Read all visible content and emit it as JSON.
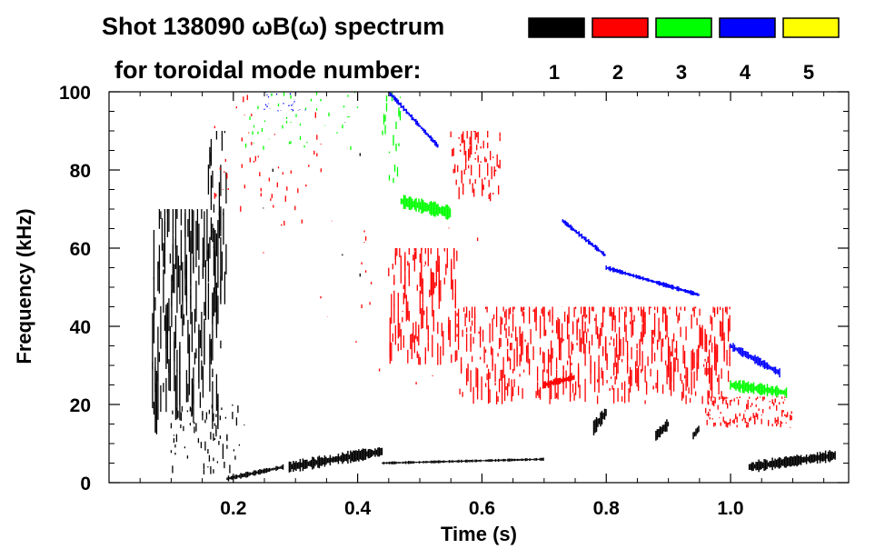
{
  "chart_data": {
    "type": "scatter",
    "title_line1": "Shot 138090 ωB(ω) spectrum",
    "title_line2": "for toroidal mode number:",
    "xlabel": "Time (s)",
    "ylabel": "Frequency (kHz)",
    "xlim": [
      0.0,
      1.19
    ],
    "ylim": [
      0,
      100
    ],
    "x_ticks": [
      0.2,
      0.4,
      0.6,
      0.8,
      1.0
    ],
    "x_tick_labels": [
      "0.2",
      "0.4",
      "0.6",
      "0.8",
      "1.0"
    ],
    "y_ticks": [
      0,
      20,
      40,
      60,
      80,
      100
    ],
    "y_tick_labels": [
      "0",
      "20",
      "40",
      "60",
      "80",
      "100"
    ],
    "legend": [
      {
        "label": "1",
        "color": "#000000"
      },
      {
        "label": "2",
        "color": "#ff0000"
      },
      {
        "label": "3",
        "color": "#00ff00"
      },
      {
        "label": "4",
        "color": "#0000ff"
      },
      {
        "label": "5",
        "color": "#ffff00"
      }
    ],
    "series": [
      {
        "name": "n=1",
        "color": "#000000",
        "regions": [
          {
            "x": [
              0.07,
              0.18
            ],
            "y": [
              12,
              70
            ],
            "density": 0.55
          },
          {
            "x": [
              0.16,
              0.19
            ],
            "y": [
              40,
              90
            ],
            "density": 0.35
          },
          {
            "x": [
              0.1,
              0.21
            ],
            "y": [
              2,
              20
            ],
            "density": 0.25
          },
          {
            "x": [
              0.2,
              0.45
            ],
            "y": [
              10,
              95
            ],
            "density": 0.02
          }
        ],
        "tracks": [
          {
            "x": [
              0.19,
              0.28
            ],
            "y": [
              1,
              4
            ],
            "w": 1.2
          },
          {
            "x": [
              0.29,
              0.44
            ],
            "y": [
              4,
              8
            ],
            "w": 2.5
          },
          {
            "x": [
              0.44,
              0.7
            ],
            "y": [
              5,
              6
            ],
            "w": 0.6
          },
          {
            "x": [
              1.03,
              1.17
            ],
            "y": [
              4,
              7
            ],
            "w": 2.5
          },
          {
            "x": [
              0.78,
              0.8
            ],
            "y": [
              14,
              18
            ],
            "w": 3
          },
          {
            "x": [
              0.88,
              0.9
            ],
            "y": [
              12,
              15
            ],
            "w": 2.5
          },
          {
            "x": [
              0.94,
              0.95
            ],
            "y": [
              12,
              14
            ],
            "w": 2
          }
        ]
      },
      {
        "name": "n=2",
        "color": "#ff0000",
        "regions": [
          {
            "x": [
              0.45,
              0.56
            ],
            "y": [
              30,
              60
            ],
            "density": 0.5
          },
          {
            "x": [
              0.56,
              1.0
            ],
            "y": [
              20,
              45
            ],
            "density": 0.45
          },
          {
            "x": [
              0.96,
              1.1
            ],
            "y": [
              14,
              22
            ],
            "density": 0.35
          },
          {
            "x": [
              0.55,
              0.63
            ],
            "y": [
              72,
              90
            ],
            "density": 0.35
          },
          {
            "x": [
              0.17,
              0.35
            ],
            "y": [
              65,
              100
            ],
            "density": 0.08
          },
          {
            "x": [
              0.4,
              0.6
            ],
            "y": [
              20,
              75
            ],
            "density": 0.04
          },
          {
            "x": [
              0.22,
              0.45
            ],
            "y": [
              15,
              85
            ],
            "density": 0.015
          }
        ],
        "tracks": [
          {
            "x": [
              0.7,
              0.75
            ],
            "y": [
              25,
              27
            ],
            "w": 1.5
          }
        ]
      },
      {
        "name": "n=3",
        "color": "#00ff00",
        "regions": [
          {
            "x": [
              0.22,
              0.4
            ],
            "y": [
              85,
              100
            ],
            "density": 0.12
          },
          {
            "x": [
              0.44,
              0.47
            ],
            "y": [
              75,
              100
            ],
            "density": 0.2
          }
        ],
        "tracks": [
          {
            "x": [
              0.47,
              0.55
            ],
            "y": [
              72,
              69
            ],
            "w": 3
          },
          {
            "x": [
              1.0,
              1.09
            ],
            "y": [
              25,
              23
            ],
            "w": 2.5
          }
        ]
      },
      {
        "name": "n=4",
        "color": "#0000ff",
        "regions": [
          {
            "x": [
              0.25,
              0.32
            ],
            "y": [
              95,
              100
            ],
            "density": 0.15
          }
        ],
        "tracks": [
          {
            "x": [
              0.45,
              0.53
            ],
            "y": [
              100,
              86
            ],
            "w": 1.2
          },
          {
            "x": [
              0.73,
              0.8
            ],
            "y": [
              67,
              58
            ],
            "w": 1.2
          },
          {
            "x": [
              0.8,
              0.95
            ],
            "y": [
              55,
              48
            ],
            "w": 1
          },
          {
            "x": [
              1.0,
              1.08
            ],
            "y": [
              35,
              28
            ],
            "w": 1.8
          }
        ]
      },
      {
        "name": "n=5",
        "color": "#ffff00",
        "regions": [],
        "tracks": []
      }
    ]
  }
}
